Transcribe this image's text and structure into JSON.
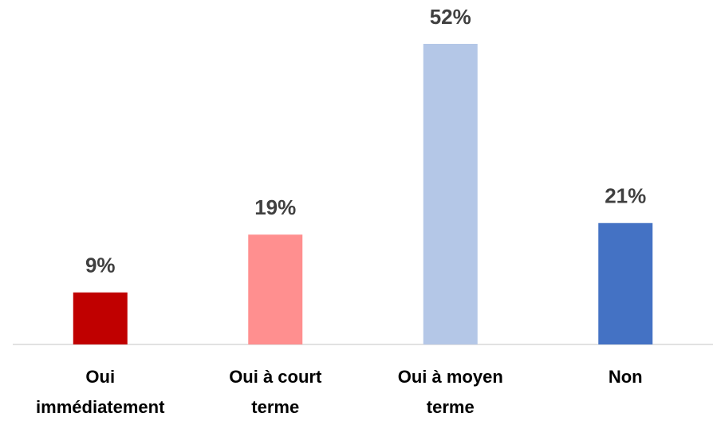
{
  "chart_data": {
    "type": "bar",
    "categories": [
      "Oui immédiatement",
      "Oui à court terme",
      "Oui à moyen terme",
      "Non"
    ],
    "values": [
      9,
      19,
      52,
      21
    ],
    "value_labels": [
      "9%",
      "19%",
      "52%",
      "21%"
    ],
    "colors": [
      "#c00000",
      "#ff8f8f",
      "#b4c7e7",
      "#4472c4"
    ]
  }
}
